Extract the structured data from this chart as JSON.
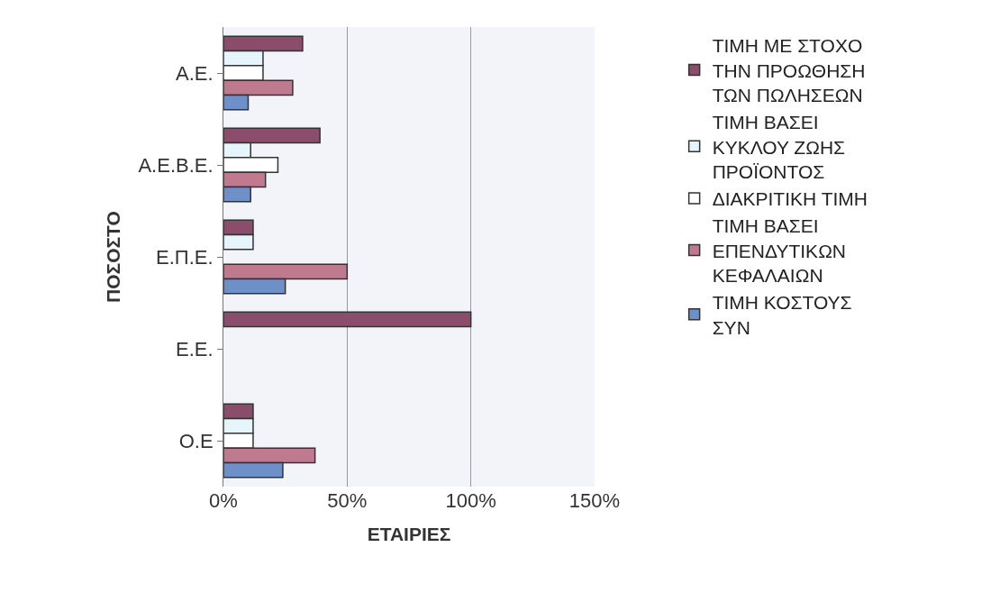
{
  "chart_data": {
    "type": "bar",
    "orientation": "horizontal",
    "xlabel": "ΕΤΑΙΡΙΕΣ",
    "ylabel": "ΠΟΣΟΣΤΟ",
    "categories": [
      "Α.Ε.",
      "Α.Ε.Β.Ε.",
      "Ε.Π.Ε.",
      "Ε.Ε.",
      "Ο.Ε"
    ],
    "series": [
      {
        "name": "ΤΙΜΗ ΜΕ ΣΤΟΧΟ ΤΗΝ ΠΡΟΩΘΗΣΗ ΤΩΝ ΠΩΛΗΣΕΩΝ",
        "color": "#8b4d6b",
        "values": [
          32,
          39,
          12,
          100,
          12
        ]
      },
      {
        "name": "ΤΙΜΗ ΒΑΣΕΙ ΚΥΚΛΟΥ ΖΩΗΣ ΠΡΟΪΟΝΤΟΣ",
        "color": "#e6f4fb",
        "values": [
          16,
          11,
          12,
          0,
          12
        ]
      },
      {
        "name": "ΔΙΑΚΡΙΤΙΚΗ ΤΙΜΗ",
        "color": "#ffffff",
        "values": [
          16,
          22,
          0,
          0,
          12
        ]
      },
      {
        "name": "ΤΙΜΗ ΒΑΣΕΙ ΕΠΕΝΔΥΤΙΚΩΝ ΚΕΦΑΛΑΙΩΝ",
        "color": "#c07a90",
        "values": [
          28,
          17,
          50,
          0,
          37
        ]
      },
      {
        "name": "ΤΙΜΗ ΚΟΣΤΟΥΣ ΣΥΝ",
        "color": "#6f8fc8",
        "values": [
          10,
          11,
          25,
          0,
          24
        ]
      }
    ],
    "xlim": [
      0,
      150
    ],
    "xticks": [
      {
        "value": 0,
        "label": "0%"
      },
      {
        "value": 50,
        "label": "50%"
      },
      {
        "value": 100,
        "label": "100%"
      },
      {
        "value": 150,
        "label": "150%"
      }
    ],
    "grid": "x",
    "legend": "right"
  }
}
